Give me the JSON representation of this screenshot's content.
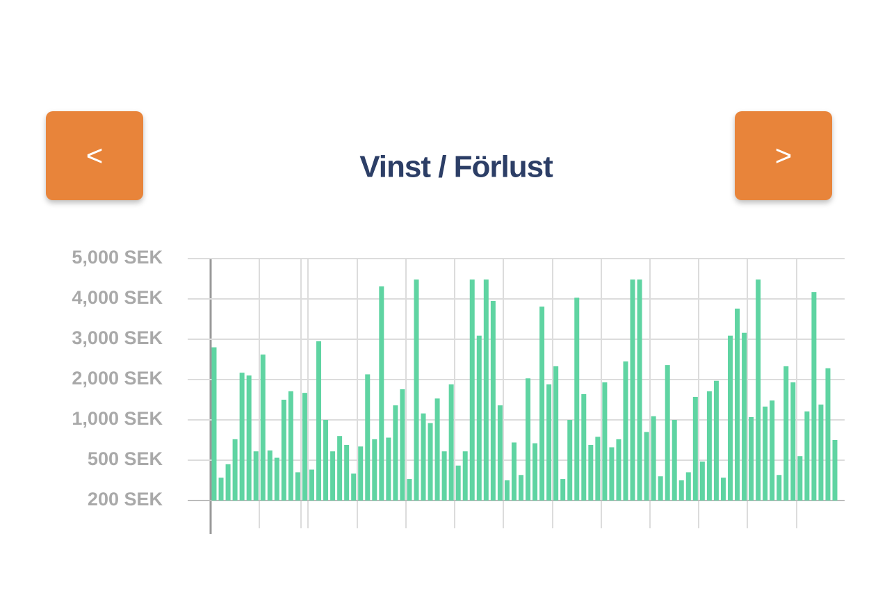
{
  "buttons": {
    "prev": "<",
    "next": ">"
  },
  "chart_data": {
    "type": "bar",
    "title": "Vinst / Förlust",
    "color": "#5fd4a2",
    "grid": true,
    "values": [
      2800,
      370,
      470,
      760,
      2170,
      2100,
      610,
      2620,
      620,
      530,
      1500,
      1710,
      410,
      1670,
      430,
      2950,
      1000,
      610,
      800,
      690,
      400,
      670,
      2130,
      760,
      4310,
      780,
      1360,
      1760,
      360,
      4480,
      1160,
      960,
      1530,
      610,
      1880,
      460,
      610,
      4480,
      3090,
      4480,
      3950,
      1360,
      350,
      720,
      390,
      2030,
      710,
      3810,
      1880,
      2330,
      360,
      1000,
      4030,
      1640,
      690,
      790,
      1930,
      660,
      760,
      2450,
      4480,
      4480,
      850,
      1090,
      380,
      2360,
      1000,
      350,
      410,
      1570,
      490,
      1710,
      1970,
      370,
      3090,
      3760,
      3160,
      1070,
      4480,
      1330,
      1480,
      390,
      2330,
      1930,
      550,
      1210,
      4170,
      1380,
      2280,
      750
    ],
    "ylim": [
      200,
      5000
    ],
    "yticks": [
      {
        "value": 200,
        "label": "200 SEK"
      },
      {
        "value": 500,
        "label": "500 SEK"
      },
      {
        "value": 1000,
        "label": "1,000 SEK"
      },
      {
        "value": 2000,
        "label": "2,000 SEK"
      },
      {
        "value": 3000,
        "label": "3,000 SEK"
      },
      {
        "value": 4000,
        "label": "4,000 SEK"
      },
      {
        "value": 5000,
        "label": "5,000 SEK"
      }
    ]
  }
}
